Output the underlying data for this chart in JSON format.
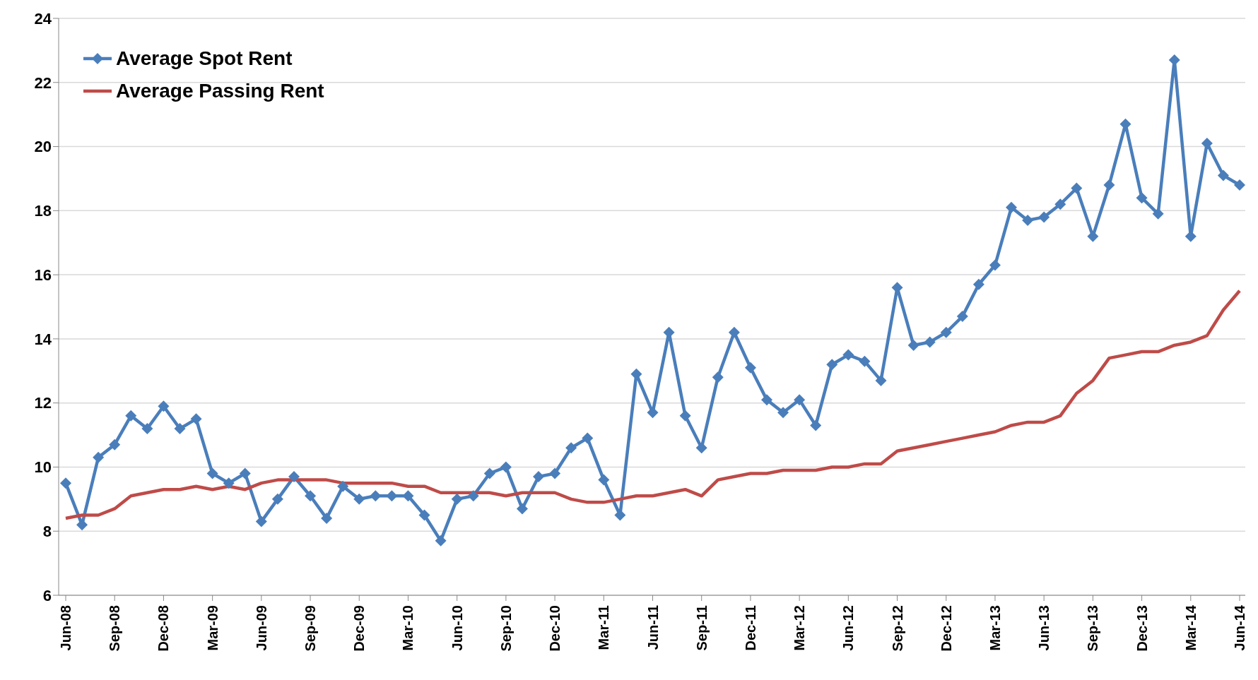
{
  "chart_data": {
    "type": "line",
    "categories": [
      "Jun-08",
      null,
      null,
      "Sep-08",
      null,
      null,
      "Dec-08",
      null,
      null,
      "Mar-09",
      null,
      null,
      "Jun-09",
      null,
      null,
      "Sep-09",
      null,
      null,
      "Dec-09",
      null,
      null,
      "Mar-10",
      null,
      null,
      "Jun-10",
      null,
      null,
      "Sep-10",
      null,
      null,
      "Dec-10",
      null,
      null,
      "Mar-11",
      null,
      null,
      "Jun-11",
      null,
      null,
      "Sep-11",
      null,
      null,
      "Dec-11",
      null,
      null,
      "Mar-12",
      null,
      null,
      "Jun-12",
      null,
      null,
      "Sep-12",
      null,
      null,
      "Dec-12",
      null,
      null,
      "Mar-13",
      null,
      null,
      "Jun-13",
      null,
      null,
      "Sep-13",
      null,
      null,
      "Dec-13",
      null,
      null,
      "Mar-14",
      null,
      null,
      "Jun-14"
    ],
    "series": [
      {
        "name": "Average Spot Rent",
        "color": "#4a7ebb",
        "marker": "diamond",
        "values": [
          9.5,
          8.2,
          10.3,
          10.7,
          11.6,
          11.2,
          11.9,
          11.2,
          11.5,
          9.8,
          9.5,
          9.8,
          8.3,
          9.0,
          9.7,
          9.1,
          8.4,
          9.4,
          9.0,
          9.1,
          9.1,
          9.1,
          8.5,
          7.7,
          9.0,
          9.1,
          9.8,
          10.0,
          8.7,
          9.7,
          9.8,
          10.6,
          10.9,
          9.6,
          8.5,
          12.9,
          11.7,
          14.2,
          11.6,
          10.6,
          12.8,
          14.2,
          13.1,
          12.1,
          11.7,
          12.1,
          11.3,
          13.2,
          13.5,
          13.3,
          12.7,
          15.6,
          13.8,
          13.9,
          14.2,
          14.7,
          15.7,
          16.3,
          18.1,
          17.7,
          17.8,
          18.2,
          18.7,
          17.2,
          18.8,
          20.7,
          18.4,
          17.9,
          22.7,
          17.2,
          20.1,
          19.1,
          18.8
        ]
      },
      {
        "name": "Average Passing Rent",
        "color": "#be4b48",
        "marker": "none",
        "values": [
          8.4,
          8.5,
          8.5,
          8.7,
          9.1,
          9.2,
          9.3,
          9.3,
          9.4,
          9.3,
          9.4,
          9.3,
          9.5,
          9.6,
          9.6,
          9.6,
          9.6,
          9.5,
          9.5,
          9.5,
          9.5,
          9.4,
          9.4,
          9.2,
          9.2,
          9.2,
          9.2,
          9.1,
          9.2,
          9.2,
          9.2,
          9.0,
          8.9,
          8.9,
          9.0,
          9.1,
          9.1,
          9.2,
          9.3,
          9.1,
          9.6,
          9.7,
          9.8,
          9.8,
          9.9,
          9.9,
          9.9,
          10.0,
          10.0,
          10.1,
          10.1,
          10.5,
          10.6,
          10.7,
          10.8,
          10.9,
          11.0,
          11.1,
          11.3,
          11.4,
          11.4,
          11.6,
          12.3,
          12.7,
          13.4,
          13.5,
          13.6,
          13.6,
          13.8,
          13.9,
          14.1,
          14.9,
          15.5
        ]
      }
    ],
    "ylim": [
      6,
      24
    ],
    "yticks": [
      6,
      8,
      10,
      12,
      14,
      16,
      18,
      20,
      22,
      24
    ],
    "grid": "y",
    "legend": "top left",
    "line_style": "solid"
  }
}
